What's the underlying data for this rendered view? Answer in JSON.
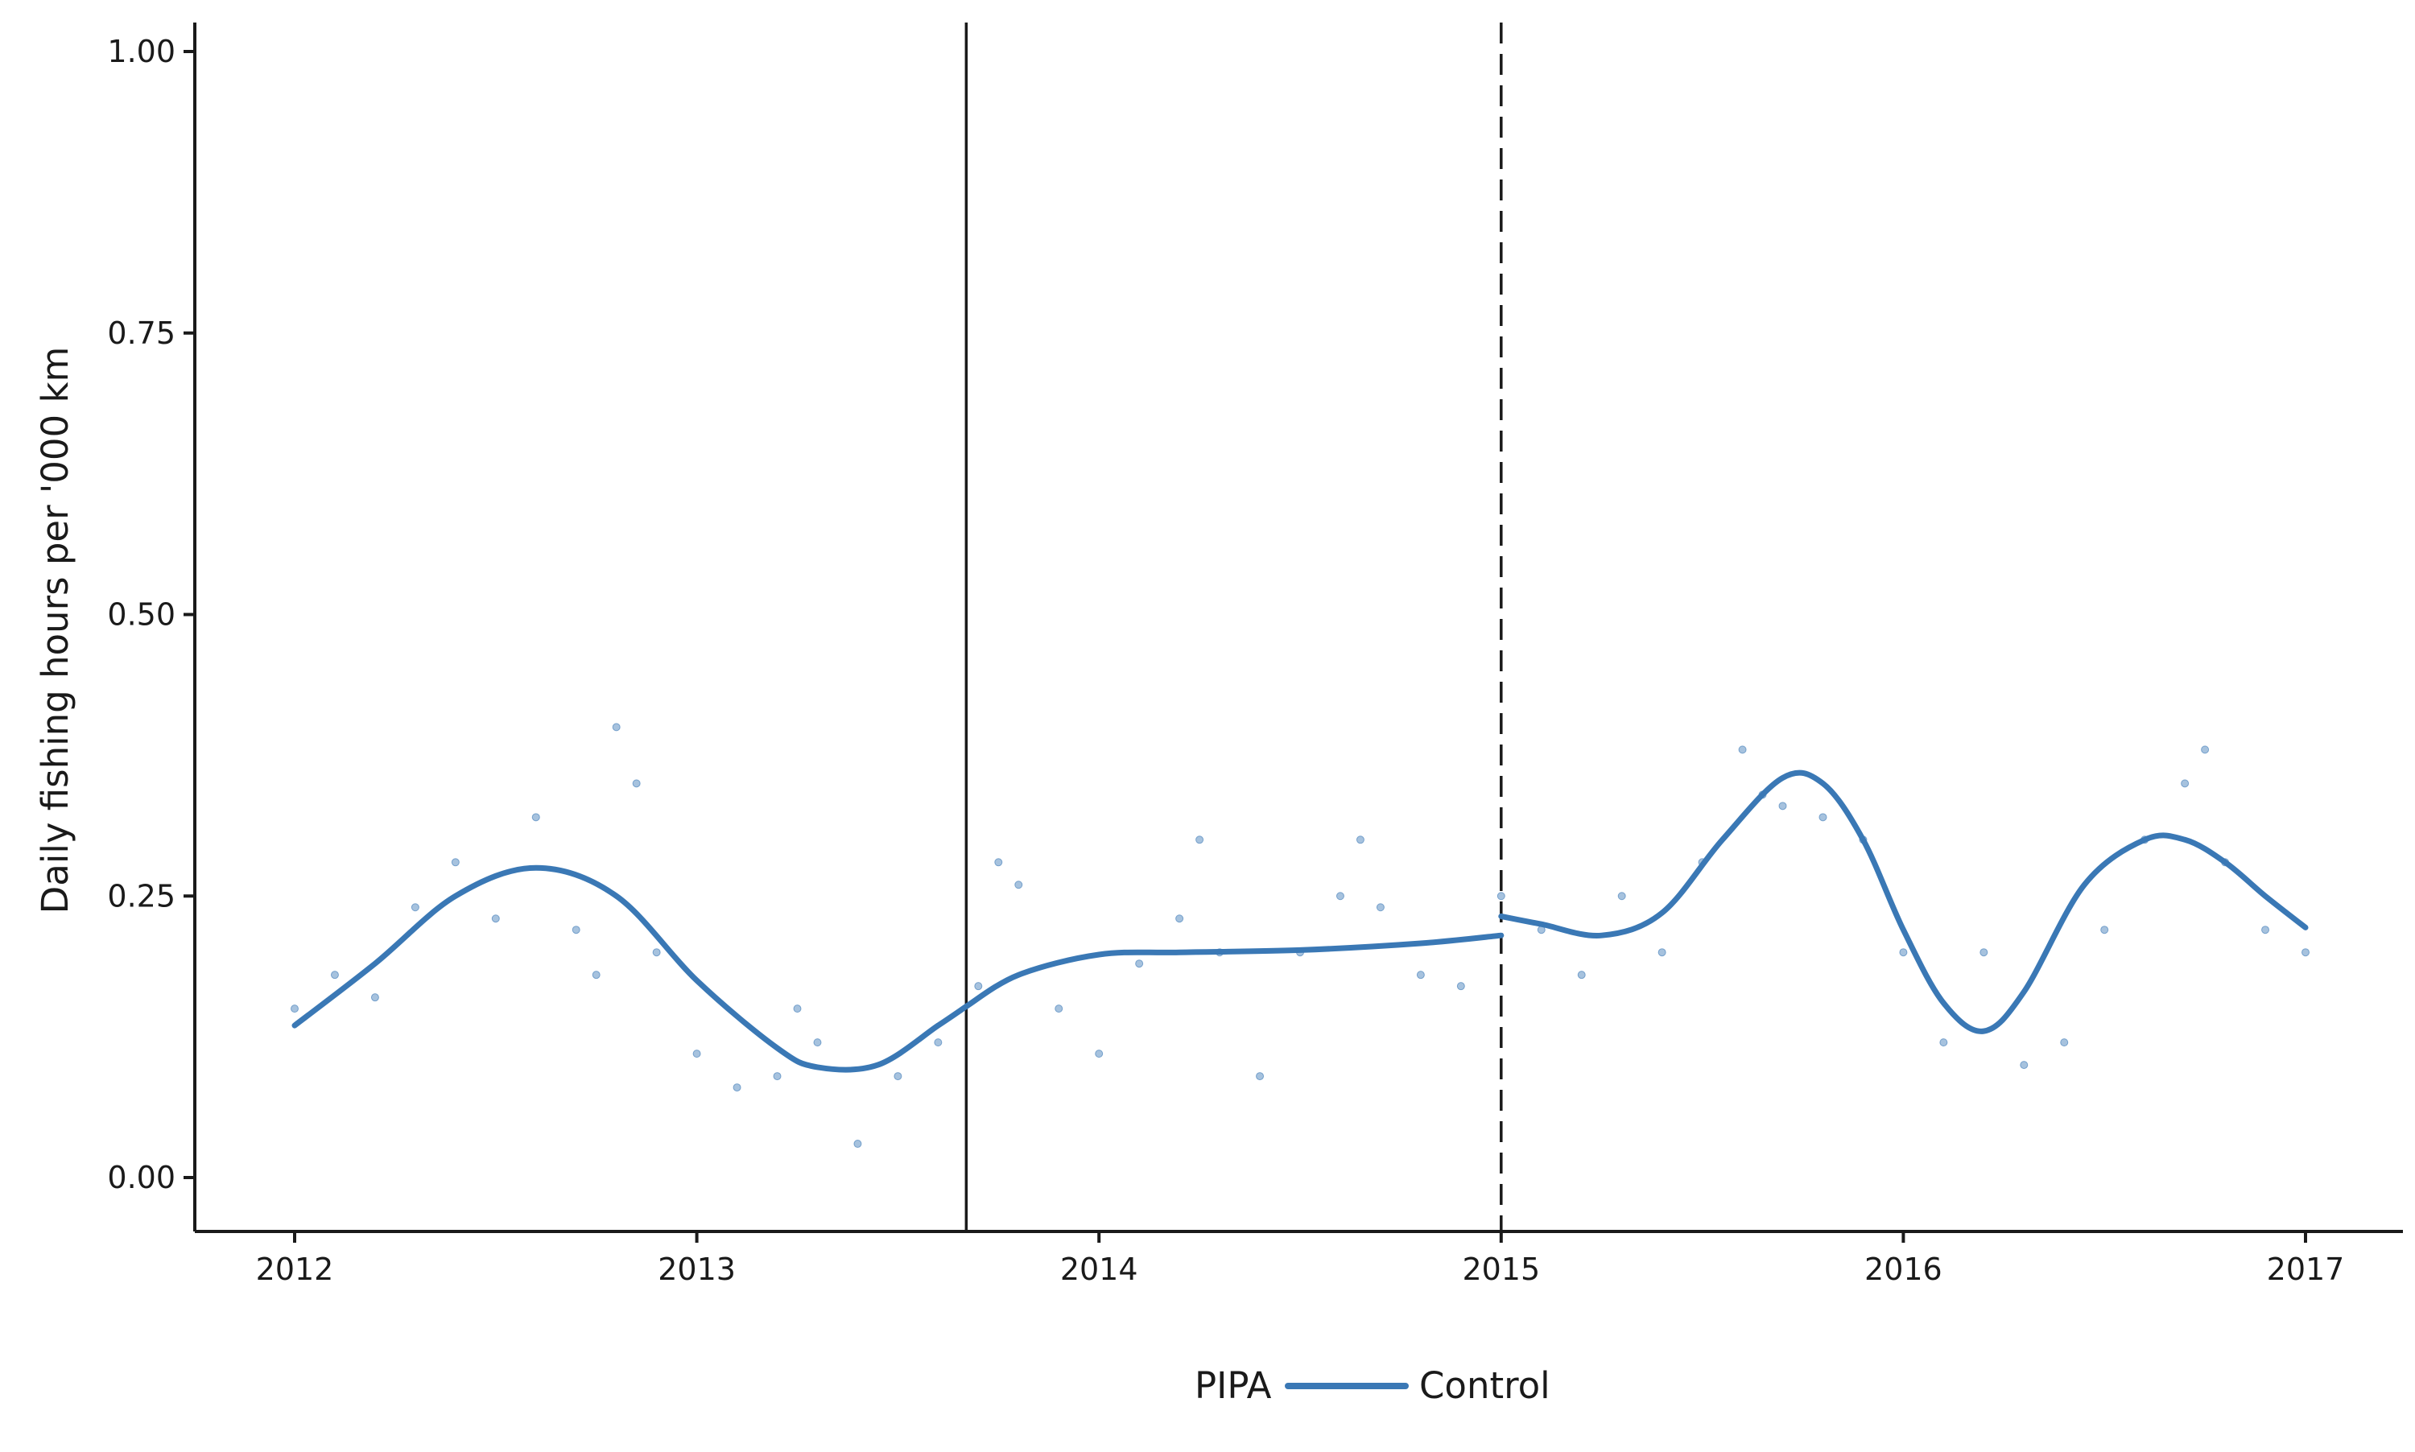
{
  "chart_data": {
    "type": "scatter",
    "title": "",
    "xlabel": "",
    "ylabel": "Daily fishing hours per '000 km",
    "xlim": [
      2011.75,
      2017.25
    ],
    "ylim": [
      -0.1,
      1.03
    ],
    "x_ticks": [
      2012,
      2013,
      2014,
      2015,
      2016,
      2017
    ],
    "x_tick_labels": [
      "2012",
      "2013",
      "2014",
      "2015",
      "2016",
      "2017"
    ],
    "y_ticks": [
      0,
      0.25,
      0.5,
      0.75,
      1.0
    ],
    "y_tick_labels": [
      "0.00",
      "0.25",
      "0.50",
      "0.75",
      "1.00"
    ],
    "grid": false,
    "legend": {
      "title": "PIPA",
      "placement": "bottom",
      "entries": [
        {
          "label": "Control",
          "color": "#3a78b5"
        }
      ]
    },
    "reference_lines": [
      {
        "x": 2013.67,
        "style": "solid",
        "color": "#1a1a1a"
      },
      {
        "x": 2015.0,
        "style": "dashed",
        "color": "#1a1a1a"
      }
    ],
    "series": [
      {
        "name": "Control",
        "kind": "points",
        "color": "#3a78b5",
        "x": [
          2012.0,
          2012.1,
          2012.2,
          2012.3,
          2012.4,
          2012.5,
          2012.6,
          2012.7,
          2012.75,
          2012.8,
          2012.85,
          2012.9,
          2013.0,
          2013.1,
          2013.2,
          2013.25,
          2013.3,
          2013.4,
          2013.5,
          2013.6,
          2013.7,
          2013.75,
          2013.8,
          2013.9,
          2014.0,
          2014.1,
          2014.2,
          2014.25,
          2014.3,
          2014.4,
          2014.5,
          2014.6,
          2014.65,
          2014.7,
          2014.8,
          2014.9,
          2015.0,
          2015.1,
          2015.2,
          2015.3,
          2015.4,
          2015.5,
          2015.6,
          2015.65,
          2015.7,
          2015.8,
          2015.9,
          2016.0,
          2016.1,
          2016.2,
          2016.3,
          2016.4,
          2016.5,
          2016.6,
          2016.7,
          2016.75,
          2016.8,
          2016.9,
          2017.0
        ],
        "y": [
          0.15,
          0.18,
          0.16,
          0.24,
          0.28,
          0.23,
          0.32,
          0.22,
          0.18,
          0.4,
          0.35,
          0.2,
          0.11,
          0.08,
          0.09,
          0.15,
          0.12,
          0.03,
          0.09,
          0.12,
          0.17,
          0.28,
          0.26,
          0.15,
          0.11,
          0.19,
          0.23,
          0.3,
          0.2,
          0.09,
          0.2,
          0.25,
          0.3,
          0.24,
          0.18,
          0.17,
          0.25,
          0.22,
          0.18,
          0.25,
          0.2,
          0.28,
          0.38,
          0.34,
          0.33,
          0.32,
          0.3,
          0.2,
          0.12,
          0.2,
          0.1,
          0.12,
          0.22,
          0.3,
          0.35,
          0.38,
          0.28,
          0.22,
          0.2
        ]
      },
      {
        "name": "Control",
        "kind": "smooth",
        "color": "#3a78b5",
        "segments": [
          {
            "x": [
              2012.0,
              2012.2,
              2012.4,
              2012.6,
              2012.8,
              2013.0,
              2013.2,
              2013.3,
              2013.45,
              2013.6,
              2013.67
            ],
            "y": [
              0.135,
              0.19,
              0.25,
              0.275,
              0.25,
              0.175,
              0.115,
              0.098,
              0.1,
              0.135,
              0.152
            ]
          },
          {
            "x": [
              2013.67,
              2013.8,
              2014.0,
              2014.2,
              2014.5,
              2014.8,
              2015.0
            ],
            "y": [
              0.152,
              0.18,
              0.198,
              0.2,
              0.202,
              0.208,
              0.215
            ]
          },
          {
            "x": [
              2015.0,
              2015.1,
              2015.25,
              2015.4,
              2015.55,
              2015.7,
              2015.8,
              2015.9,
              2016.0,
              2016.1,
              2016.2,
              2016.3,
              2016.45,
              2016.6,
              2016.7,
              2016.8,
              2016.9,
              2017.0
            ],
            "y": [
              0.232,
              0.225,
              0.215,
              0.235,
              0.3,
              0.355,
              0.35,
              0.3,
              0.22,
              0.155,
              0.13,
              0.165,
              0.26,
              0.3,
              0.3,
              0.28,
              0.25,
              0.222
            ]
          }
        ]
      }
    ]
  }
}
